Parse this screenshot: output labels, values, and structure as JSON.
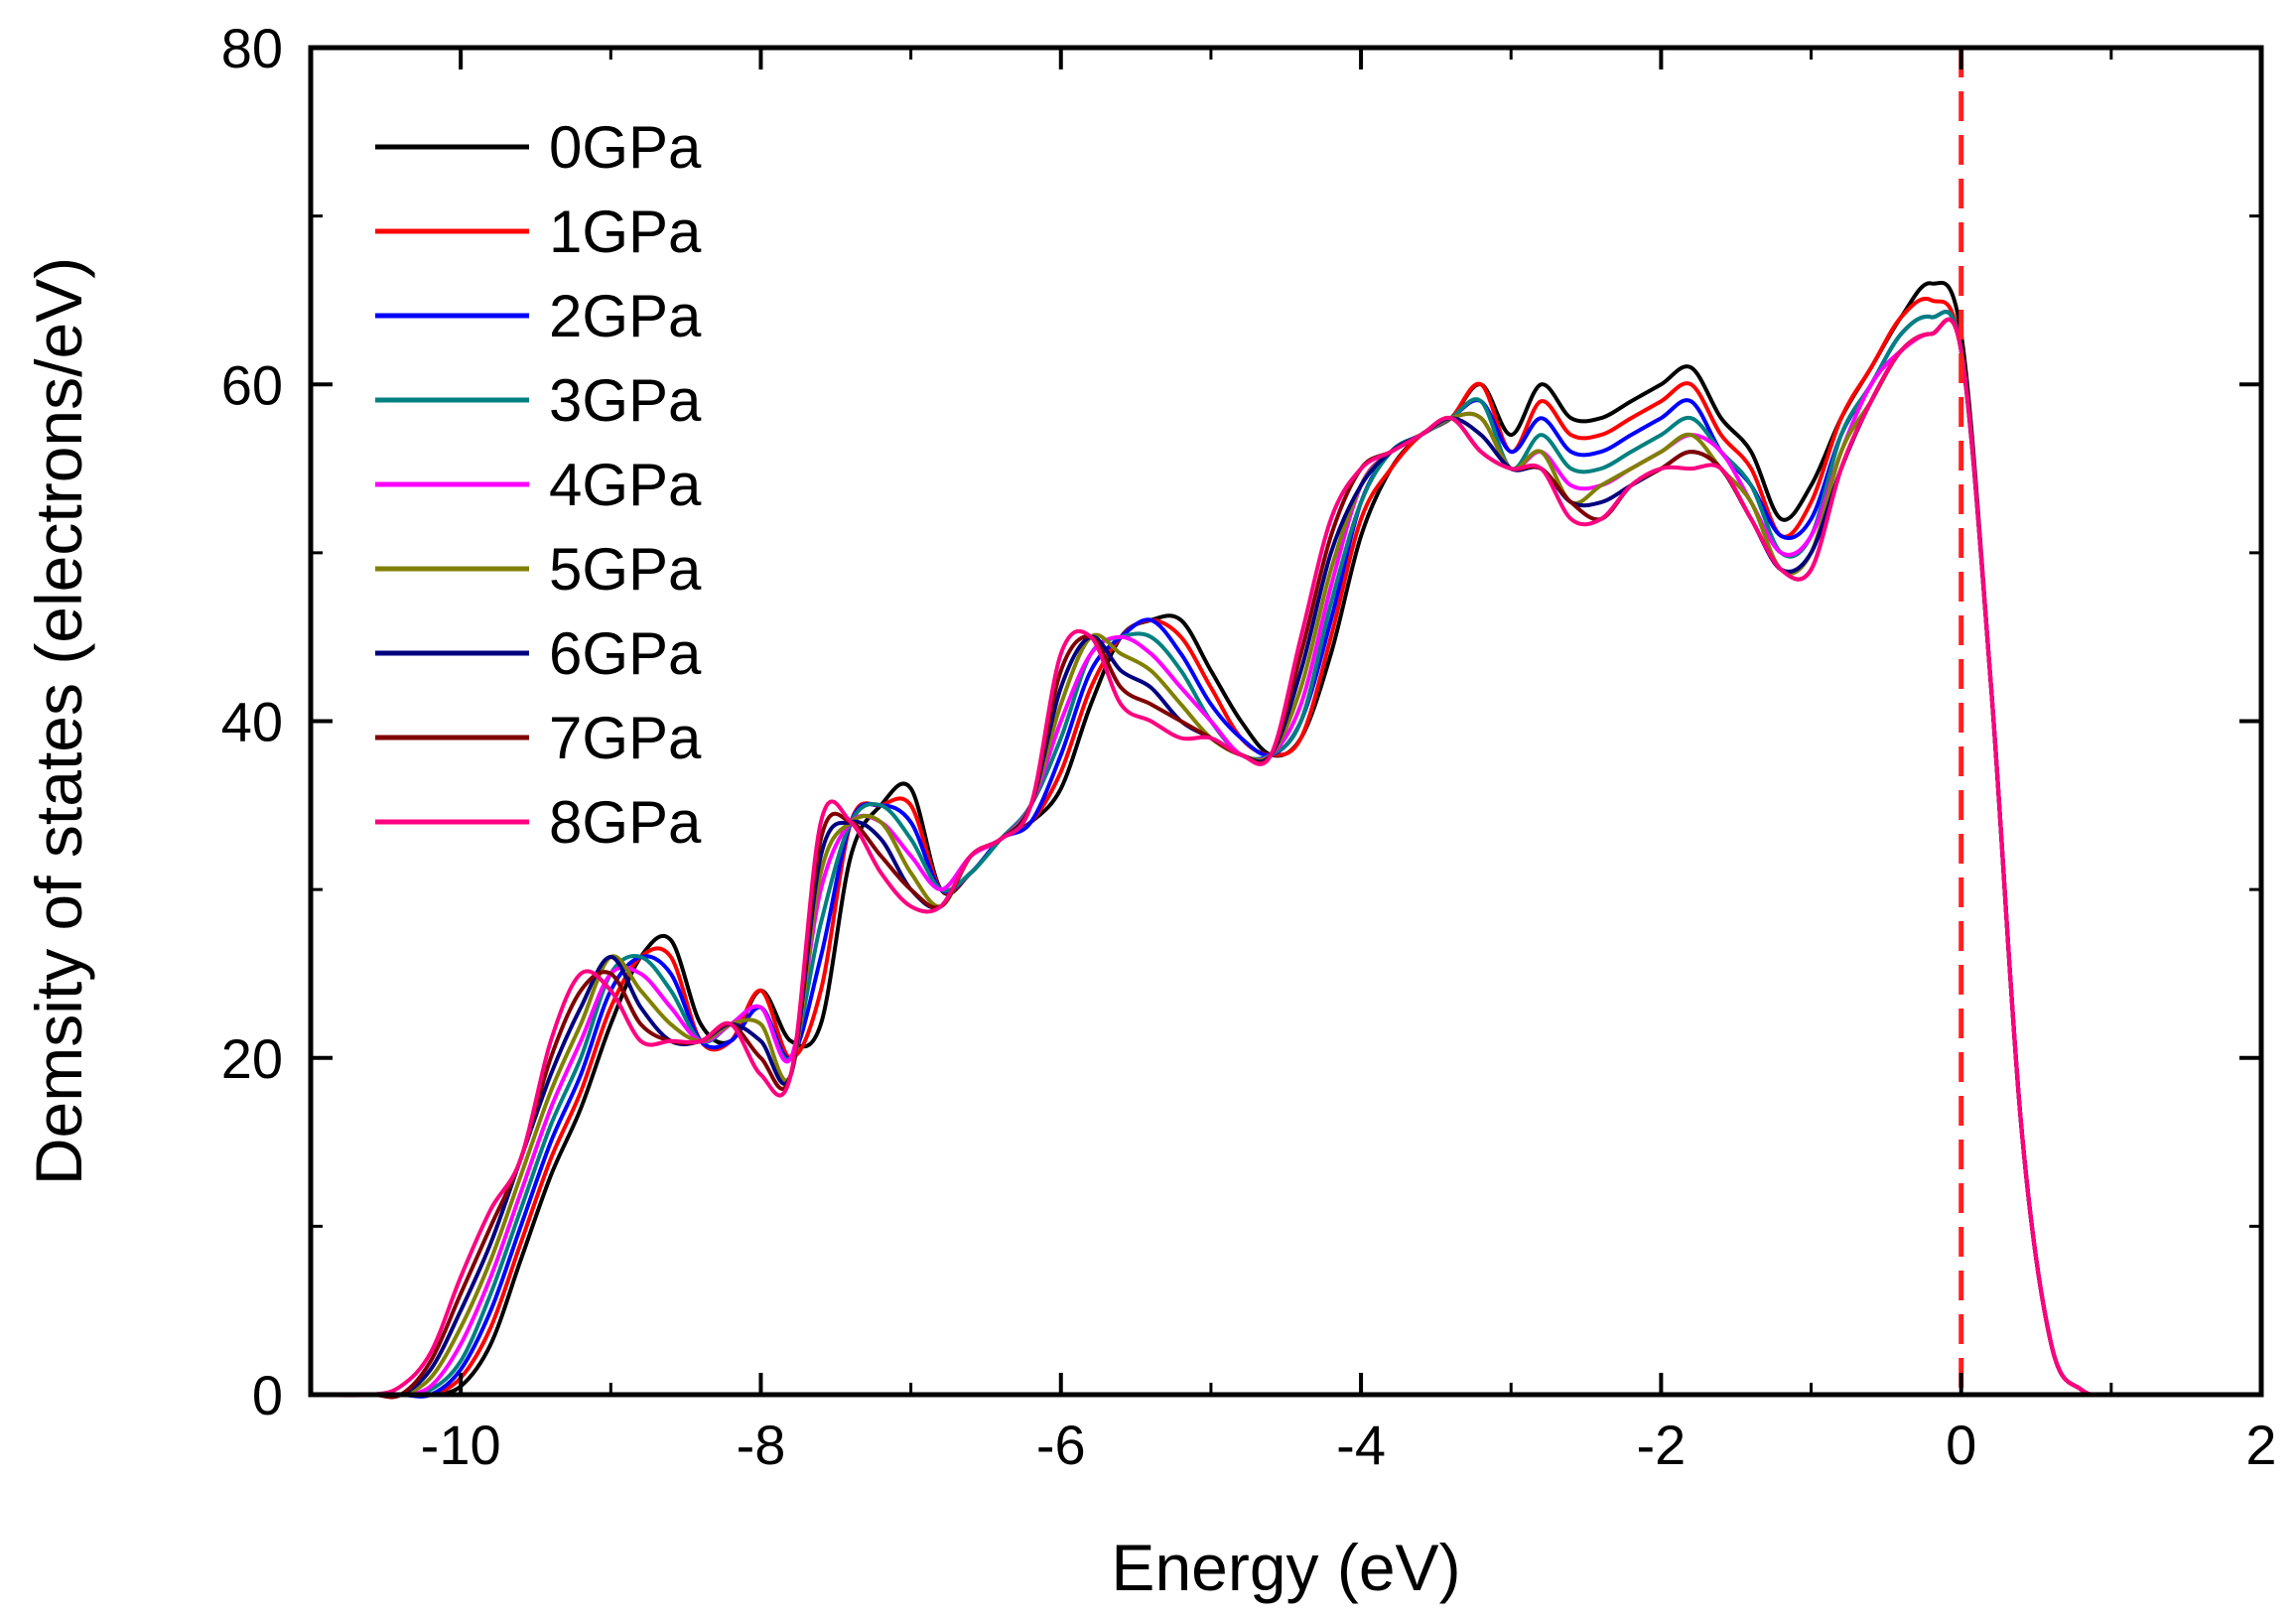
{
  "chart_data": {
    "type": "line",
    "title": "",
    "xlabel": "Energy (eV)",
    "ylabel": "Demsity of states (electrons/eV)",
    "xlim": [
      -11,
      2
    ],
    "ylim": [
      0,
      80
    ],
    "xticks": [
      -10,
      -8,
      -6,
      -4,
      -2,
      0,
      2
    ],
    "yticks": [
      0,
      20,
      40,
      60,
      80
    ],
    "xtick_labels": [
      "-10",
      "-8",
      "-6",
      "-4",
      "-2",
      "0",
      "2"
    ],
    "ytick_labels": [
      "0",
      "20",
      "40",
      "60",
      "80"
    ],
    "fermi_level": 0,
    "legend_position": "top-left",
    "x": [
      -11.0,
      -10.6,
      -10.4,
      -10.2,
      -10.0,
      -9.8,
      -9.6,
      -9.4,
      -9.2,
      -9.0,
      -8.8,
      -8.6,
      -8.4,
      -8.2,
      -8.0,
      -7.8,
      -7.6,
      -7.4,
      -7.2,
      -7.0,
      -6.8,
      -6.6,
      -6.4,
      -6.2,
      -6.0,
      -5.8,
      -5.6,
      -5.4,
      -5.2,
      -5.0,
      -4.8,
      -4.6,
      -4.4,
      -4.2,
      -4.0,
      -3.8,
      -3.6,
      -3.4,
      -3.2,
      -3.0,
      -2.8,
      -2.6,
      -2.4,
      -2.2,
      -2.0,
      -1.8,
      -1.6,
      -1.4,
      -1.2,
      -1.0,
      -0.8,
      -0.6,
      -0.4,
      -0.2,
      0.0,
      0.2,
      0.4,
      0.6,
      0.8,
      1.0,
      1.2,
      2.0
    ],
    "series": [
      {
        "name": "0GPa",
        "color": "#000000",
        "values": [
          0,
          0,
          0,
          0,
          0.5,
          3,
          8,
          13,
          17,
          22,
          26,
          27,
          22,
          21,
          24,
          21,
          22,
          32,
          35,
          36,
          30,
          31,
          33,
          34,
          36,
          41,
          45,
          46,
          46,
          43,
          40,
          38,
          39,
          44,
          51,
          55,
          57,
          58,
          60,
          57,
          60,
          58,
          58,
          59,
          60,
          61,
          58,
          56,
          52,
          54,
          58,
          61,
          64,
          66,
          63,
          42,
          16,
          3,
          0.3,
          0,
          0,
          0
        ]
      },
      {
        "name": "1GPa",
        "color": "#ff0000",
        "values": [
          0,
          0,
          0,
          0,
          1,
          4,
          9,
          14,
          18,
          23,
          26,
          26,
          21,
          21,
          24,
          20,
          24,
          34,
          35,
          35,
          30,
          31,
          33,
          34,
          37,
          42,
          45,
          46,
          45,
          42,
          39,
          38,
          39,
          45,
          52,
          55,
          57,
          58,
          60,
          56,
          59,
          57,
          57,
          58,
          59,
          60,
          57,
          55,
          51,
          53,
          58,
          61,
          64,
          65,
          62,
          42,
          16,
          3,
          0.3,
          0,
          0,
          0
        ]
      },
      {
        "name": "2GPa",
        "color": "#0000ff",
        "values": [
          0,
          0,
          0,
          0,
          1.5,
          5,
          10,
          15,
          19,
          24,
          26,
          25,
          21,
          21,
          23,
          20,
          26,
          34,
          35,
          34,
          30,
          31,
          33,
          34,
          38,
          43,
          45,
          46,
          44,
          41,
          39,
          38,
          40,
          46,
          53,
          56,
          57,
          58,
          59,
          56,
          58,
          56,
          56,
          57,
          58,
          59,
          56,
          54,
          51,
          52,
          57,
          60,
          63,
          64,
          62,
          42,
          16,
          3,
          0.3,
          0,
          0,
          0
        ]
      },
      {
        "name": "3GPa",
        "color": "#008080",
        "values": [
          0,
          0,
          0,
          0.3,
          2,
          6,
          11,
          16,
          20,
          25,
          26,
          24,
          21,
          22,
          23,
          20,
          28,
          34,
          35,
          33,
          30,
          31,
          33,
          35,
          39,
          44,
          45,
          45,
          43,
          40,
          38,
          38,
          40,
          47,
          53,
          56,
          57,
          58,
          59,
          55,
          57,
          55,
          55,
          56,
          57,
          58,
          56,
          54,
          50,
          51,
          57,
          60,
          63,
          64,
          62,
          42,
          16,
          3,
          0.3,
          0,
          0,
          0
        ]
      },
      {
        "name": "4GPa",
        "color": "#ff00ff",
        "values": [
          0,
          0,
          0,
          0.5,
          3,
          7,
          12,
          17,
          21,
          25,
          25,
          23,
          21,
          22,
          23,
          20,
          30,
          34,
          34,
          32,
          30,
          32,
          33,
          35,
          40,
          44,
          45,
          44,
          42,
          40,
          38,
          38,
          41,
          48,
          54,
          56,
          57,
          58,
          58,
          55,
          56,
          54,
          54,
          55,
          56,
          57,
          56,
          53,
          50,
          51,
          56,
          60,
          62,
          63,
          62,
          42,
          16,
          3,
          0.3,
          0,
          0,
          0
        ]
      },
      {
        "name": "5GPa",
        "color": "#808000",
        "values": [
          0,
          0,
          0,
          1,
          4,
          8,
          13,
          18,
          22,
          26,
          24,
          22,
          21,
          22,
          22,
          19,
          31,
          34,
          34,
          31,
          29,
          32,
          33,
          35,
          41,
          45,
          44,
          43,
          41,
          39,
          38,
          38,
          42,
          49,
          54,
          56,
          57,
          58,
          58,
          55,
          56,
          53,
          54,
          55,
          56,
          57,
          55,
          53,
          49,
          50,
          56,
          59,
          62,
          63,
          62,
          42,
          16,
          3,
          0.3,
          0,
          0,
          0
        ]
      },
      {
        "name": "6GPa",
        "color": "#000080",
        "values": [
          0,
          0,
          0,
          1.5,
          5,
          9,
          14,
          19,
          23,
          26,
          23,
          21,
          21,
          22,
          21,
          19,
          32,
          34,
          33,
          30,
          29,
          32,
          33,
          35,
          42,
          45,
          43,
          42,
          40,
          39,
          38,
          38,
          43,
          50,
          54,
          56,
          57,
          58,
          57,
          55,
          55,
          53,
          53,
          54,
          55,
          56,
          55,
          52,
          49,
          50,
          55,
          59,
          62,
          63,
          62,
          42,
          16,
          3,
          0.3,
          0,
          0,
          0
        ]
      },
      {
        "name": "7GPa",
        "color": "#800000",
        "values": [
          0,
          0,
          0,
          2,
          6,
          10,
          14,
          20,
          24,
          25,
          22,
          21,
          21,
          22,
          20,
          19,
          33,
          34,
          32,
          30,
          29,
          32,
          33,
          35,
          43,
          45,
          42,
          41,
          40,
          39,
          38,
          38,
          44,
          51,
          55,
          56,
          57,
          58,
          56,
          55,
          55,
          53,
          52,
          54,
          55,
          56,
          55,
          52,
          49,
          49,
          55,
          59,
          62,
          63,
          62,
          42,
          16,
          3,
          0.3,
          0,
          0,
          0
        ]
      },
      {
        "name": "8GPa",
        "color": "#ff0080",
        "values": [
          0,
          0,
          0.5,
          2.5,
          7,
          11,
          14,
          21,
          25,
          24,
          21,
          21,
          21,
          22,
          19,
          19,
          34,
          34,
          31,
          29,
          29,
          32,
          33,
          35,
          44,
          45,
          41,
          40,
          39,
          39,
          38,
          38,
          45,
          52,
          55,
          56,
          57,
          58,
          56,
          55,
          55,
          52,
          52,
          54,
          55,
          55,
          55,
          52,
          49,
          49,
          55,
          59,
          62,
          63,
          62,
          42,
          16,
          3,
          0.3,
          0,
          0,
          0
        ]
      }
    ]
  }
}
